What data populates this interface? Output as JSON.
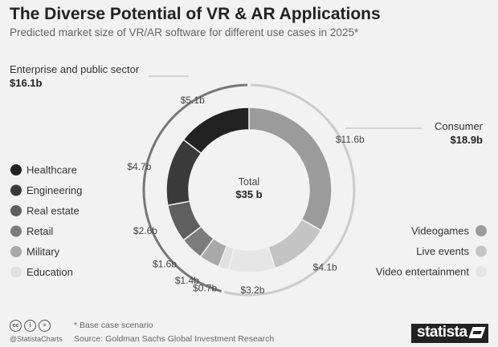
{
  "title": "The Diverse Potential of VR & AR Applications",
  "subtitle": "Predicted market size of VR/AR software for different use cases in 2025*",
  "colors": {
    "background": "#f2f2f2",
    "Healthcare": "#222222",
    "Engineering": "#3a3a3a",
    "Real estate": "#5f5f5f",
    "Retail": "#7c7c7c",
    "Military": "#a9a9a9",
    "Education": "#e0e0e0",
    "Videogames": "#9b9b9b",
    "Live events": "#c4c4c4",
    "Video entertainment": "#e6e6e6",
    "enterprise_ring": "#777777",
    "consumer_ring": "#cccccc"
  },
  "chart_data": {
    "type": "pie",
    "style": "nested-donut",
    "total_label": "Total",
    "total_value": "$35 b",
    "groups": [
      {
        "name": "Enterprise and public sector",
        "value_label": "$16.1b",
        "value": 16.1
      },
      {
        "name": "Consumer",
        "value_label": "$18.9b",
        "value": 18.9
      }
    ],
    "segments": [
      {
        "name": "Healthcare",
        "value": 5.1,
        "value_label": "$5.1b",
        "group": "Enterprise and public sector"
      },
      {
        "name": "Engineering",
        "value": 4.7,
        "value_label": "$4.7b",
        "group": "Enterprise and public sector"
      },
      {
        "name": "Real estate",
        "value": 2.6,
        "value_label": "$2.6b",
        "group": "Enterprise and public sector"
      },
      {
        "name": "Retail",
        "value": 1.6,
        "value_label": "$1.6b",
        "group": "Enterprise and public sector"
      },
      {
        "name": "Military",
        "value": 1.4,
        "value_label": "$1.4b",
        "group": "Enterprise and public sector"
      },
      {
        "name": "Education",
        "value": 0.7,
        "value_label": "$0.7b",
        "group": "Enterprise and public sector"
      },
      {
        "name": "Video entertainment",
        "value": 3.2,
        "value_label": "$3.2b",
        "group": "Consumer"
      },
      {
        "name": "Live events",
        "value": 4.1,
        "value_label": "$4.1b",
        "group": "Consumer"
      },
      {
        "name": "Videogames",
        "value": 11.6,
        "value_label": "$11.6b",
        "group": "Consumer"
      }
    ],
    "legend_left": [
      "Healthcare",
      "Engineering",
      "Real estate",
      "Retail",
      "Military",
      "Education"
    ],
    "legend_right": [
      "Videogames",
      "Live events",
      "Video entertainment"
    ]
  },
  "footer": {
    "note": "* Base case scenario",
    "source": "Source: Goldman Sachs Global Investment Research",
    "handle": "@StatistaCharts",
    "brand": "statista",
    "cc_icons": [
      "cc",
      "i",
      "="
    ]
  }
}
